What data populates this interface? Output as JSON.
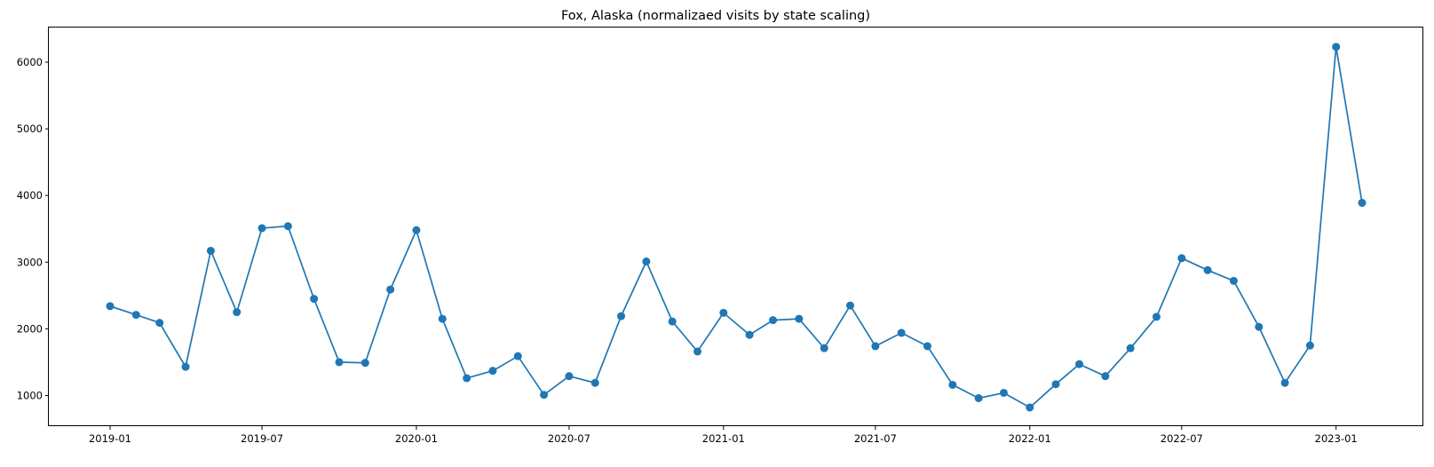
{
  "chart_data": {
    "type": "line",
    "title": "Fox, Alaska (normalizaed visits by state scaling)",
    "xlabel": "",
    "ylabel": "",
    "color": "#1f77b4",
    "marker": "circle",
    "grid": false,
    "legend": "none",
    "xlim": [
      "2018-10-20",
      "2023-04-15"
    ],
    "ylim": [
      540,
      6520
    ],
    "x_ticks": [
      "2019-01",
      "2019-07",
      "2020-01",
      "2020-07",
      "2021-01",
      "2021-07",
      "2022-01",
      "2022-07",
      "2023-01"
    ],
    "y_ticks": [
      1000,
      2000,
      3000,
      4000,
      5000,
      6000
    ],
    "series": [
      {
        "x": [
          "2019-01",
          "2019-02",
          "2019-03",
          "2019-04",
          "2019-05",
          "2019-06",
          "2019-07",
          "2019-08",
          "2019-09",
          "2019-10",
          "2019-11",
          "2019-12",
          "2020-01",
          "2020-02",
          "2020-03",
          "2020-04",
          "2020-05",
          "2020-06",
          "2020-07",
          "2020-08",
          "2020-09",
          "2020-10",
          "2020-11",
          "2020-12",
          "2021-01",
          "2021-02",
          "2021-03",
          "2021-04",
          "2021-05",
          "2021-06",
          "2021-07",
          "2021-08",
          "2021-09",
          "2021-10",
          "2021-11",
          "2021-12",
          "2022-01",
          "2022-02",
          "2022-03",
          "2022-04",
          "2022-05",
          "2022-06",
          "2022-07",
          "2022-08",
          "2022-09",
          "2022-10",
          "2022-11",
          "2022-12",
          "2023-01",
          "2023-02"
        ],
        "values": [
          2340,
          2210,
          2090,
          1430,
          3170,
          2250,
          3510,
          3540,
          2450,
          1500,
          1490,
          2590,
          3480,
          2150,
          1260,
          1370,
          1590,
          1010,
          1290,
          1190,
          2190,
          3010,
          2110,
          1660,
          2240,
          1910,
          2130,
          2150,
          1710,
          2350,
          1740,
          1940,
          1740,
          1160,
          960,
          1040,
          820,
          1170,
          1470,
          1290,
          1710,
          2180,
          3060,
          2880,
          2720,
          2030,
          1190,
          1750,
          6230,
          3890
        ]
      }
    ]
  }
}
